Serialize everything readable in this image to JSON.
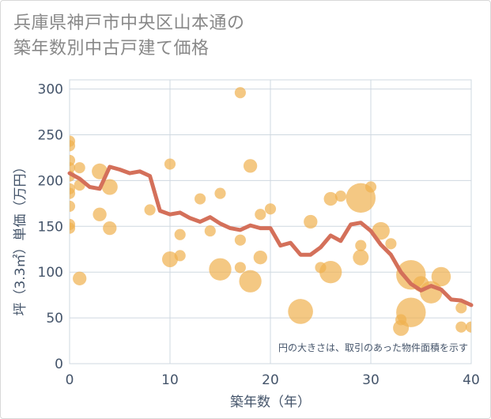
{
  "chart_data": {
    "type": "scatter",
    "title": [
      "兵庫県神戸市中央区山本通の",
      "築年数別中古戸建て価格"
    ],
    "xlabel": "築年数（年）",
    "ylabel": "坪（3.3㎡）単価（万円）",
    "xlim": [
      0,
      40
    ],
    "ylim": [
      0,
      310
    ],
    "xticks": [
      0,
      10,
      20,
      30,
      40
    ],
    "yticks": [
      0,
      50,
      100,
      150,
      200,
      250,
      300
    ],
    "grid": true,
    "note": "円の大きさは、取引のあった物件面積を示す",
    "colors": {
      "bubble": "#f0b04f",
      "line": "#d4705a",
      "grid": "#cfd8e0",
      "text": "#44546a"
    },
    "bubbles": [
      {
        "x": 0,
        "y": 243,
        "size": 2
      },
      {
        "x": 0,
        "y": 238,
        "size": 2
      },
      {
        "x": 0,
        "y": 222,
        "size": 2
      },
      {
        "x": 0,
        "y": 214,
        "size": 2
      },
      {
        "x": 0,
        "y": 205,
        "size": 2
      },
      {
        "x": 0,
        "y": 191,
        "size": 2
      },
      {
        "x": 0,
        "y": 186,
        "size": 2
      },
      {
        "x": 0,
        "y": 172,
        "size": 2
      },
      {
        "x": 0,
        "y": 152,
        "size": 2
      },
      {
        "x": 0,
        "y": 148,
        "size": 2
      },
      {
        "x": 1,
        "y": 214,
        "size": 2
      },
      {
        "x": 1,
        "y": 195,
        "size": 2
      },
      {
        "x": 1,
        "y": 93,
        "size": 3
      },
      {
        "x": 3,
        "y": 210,
        "size": 4
      },
      {
        "x": 3,
        "y": 163,
        "size": 3
      },
      {
        "x": 4,
        "y": 193,
        "size": 4
      },
      {
        "x": 4,
        "y": 148,
        "size": 3
      },
      {
        "x": 8,
        "y": 168,
        "size": 2
      },
      {
        "x": 10,
        "y": 218,
        "size": 2
      },
      {
        "x": 10,
        "y": 114,
        "size": 4
      },
      {
        "x": 11,
        "y": 141,
        "size": 2
      },
      {
        "x": 11,
        "y": 118,
        "size": 2
      },
      {
        "x": 13,
        "y": 180,
        "size": 2
      },
      {
        "x": 14,
        "y": 145,
        "size": 2
      },
      {
        "x": 15,
        "y": 186,
        "size": 2
      },
      {
        "x": 15,
        "y": 103,
        "size": 8
      },
      {
        "x": 17,
        "y": 296,
        "size": 2
      },
      {
        "x": 17,
        "y": 135,
        "size": 2
      },
      {
        "x": 17,
        "y": 105,
        "size": 2
      },
      {
        "x": 18,
        "y": 216,
        "size": 3
      },
      {
        "x": 18,
        "y": 90,
        "size": 8
      },
      {
        "x": 19,
        "y": 163,
        "size": 2
      },
      {
        "x": 19,
        "y": 116,
        "size": 3
      },
      {
        "x": 20,
        "y": 169,
        "size": 2
      },
      {
        "x": 23,
        "y": 57,
        "size": 10
      },
      {
        "x": 24,
        "y": 155,
        "size": 3
      },
      {
        "x": 25,
        "y": 105,
        "size": 2
      },
      {
        "x": 26,
        "y": 180,
        "size": 3
      },
      {
        "x": 26,
        "y": 100,
        "size": 8
      },
      {
        "x": 27,
        "y": 183,
        "size": 2
      },
      {
        "x": 29,
        "y": 181,
        "size": 14
      },
      {
        "x": 29,
        "y": 129,
        "size": 2
      },
      {
        "x": 29,
        "y": 116,
        "size": 4
      },
      {
        "x": 30,
        "y": 193,
        "size": 2
      },
      {
        "x": 31,
        "y": 145,
        "size": 5
      },
      {
        "x": 32,
        "y": 131,
        "size": 2
      },
      {
        "x": 33,
        "y": 48,
        "size": 2
      },
      {
        "x": 33,
        "y": 39,
        "size": 4
      },
      {
        "x": 34,
        "y": 97,
        "size": 14
      },
      {
        "x": 34,
        "y": 56,
        "size": 14
      },
      {
        "x": 35,
        "y": 87,
        "size": 4
      },
      {
        "x": 36,
        "y": 78,
        "size": 8
      },
      {
        "x": 37,
        "y": 95,
        "size": 6
      },
      {
        "x": 39,
        "y": 61,
        "size": 2
      },
      {
        "x": 39,
        "y": 40,
        "size": 2
      },
      {
        "x": 40,
        "y": 40,
        "size": 2
      }
    ],
    "trend": {
      "x": [
        0,
        1,
        2,
        3,
        4,
        5,
        6,
        7,
        8,
        9,
        10,
        11,
        12,
        13,
        14,
        15,
        16,
        17,
        18,
        19,
        20,
        21,
        22,
        23,
        24,
        25,
        26,
        27,
        28,
        29,
        30,
        31,
        32,
        33,
        34,
        35,
        36,
        37,
        38,
        39,
        40
      ],
      "y": [
        208,
        202,
        193,
        191,
        215,
        212,
        208,
        210,
        205,
        167,
        163,
        165,
        159,
        155,
        160,
        153,
        148,
        146,
        151,
        148,
        148,
        129,
        132,
        119,
        119,
        127,
        140,
        134,
        152,
        154,
        145,
        130,
        119,
        100,
        87,
        80,
        85,
        81,
        70,
        69,
        64
      ]
    }
  }
}
